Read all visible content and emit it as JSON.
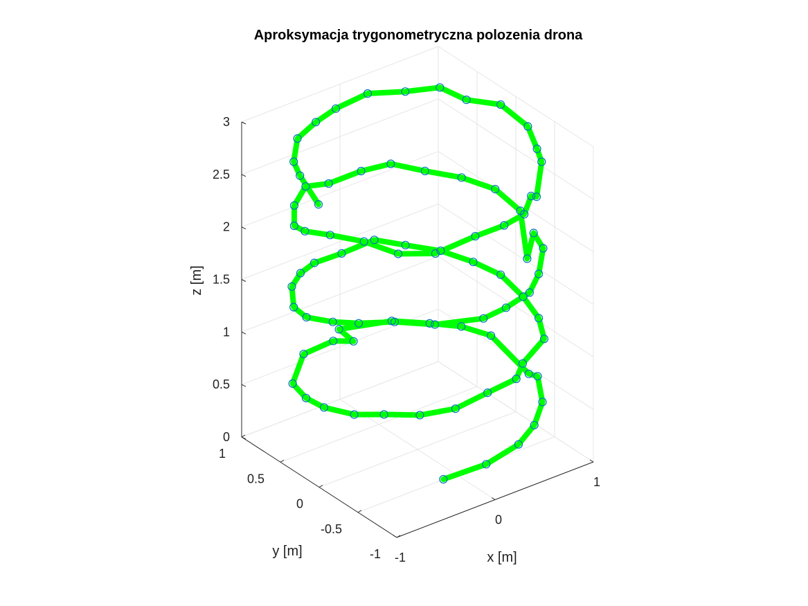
{
  "chart_data": {
    "type": "line",
    "projection": "3d",
    "title": "Aproksymacja trygonometryczna polozenia drona",
    "xlabel": "x [m]",
    "ylabel": "y [m]",
    "zlabel": "z [m]",
    "xlim": [
      -1,
      1
    ],
    "ylim": [
      -1,
      1
    ],
    "zlim": [
      0,
      3
    ],
    "xticks": [
      "-1",
      "0",
      "1"
    ],
    "yticks": [
      "-1",
      "-0.5",
      "0",
      "0.5",
      "1"
    ],
    "zticks": [
      "0",
      "0.5",
      "1",
      "1.5",
      "2",
      "2.5",
      "3"
    ],
    "grid": true,
    "series": [
      {
        "line_color": "#00ff00",
        "marker_color": "#0072bd",
        "marker": "circle",
        "points": [
          [
            -0.47,
            -0.93,
            0.33
          ],
          [
            -0.09,
            -1.0,
            0.37
          ],
          [
            0.27,
            -0.96,
            0.41
          ],
          [
            0.51,
            -0.86,
            0.46
          ],
          [
            0.79,
            -0.61,
            0.46
          ],
          [
            0.93,
            -0.37,
            0.54
          ],
          [
            0.99,
            -0.18,
            0.45
          ],
          [
            0.96,
            0.27,
            0.61
          ],
          [
            0.84,
            0.5,
            0.63
          ],
          [
            0.7,
            0.73,
            0.6
          ],
          [
            0.44,
            0.89,
            0.64
          ],
          [
            -0.01,
            1.0,
            0.67
          ],
          [
            0.13,
            0.99,
            0.51
          ],
          [
            -0.1,
            0.96,
            0.61
          ],
          [
            -0.48,
            0.86,
            0.67
          ],
          [
            -0.82,
            0.57,
            0.65
          ],
          [
            -0.96,
            0.22,
            0.73
          ],
          [
            -0.99,
            -0.05,
            0.78
          ],
          [
            -0.92,
            -0.35,
            0.83
          ],
          [
            -0.79,
            -0.57,
            0.89
          ],
          [
            -0.6,
            -0.79,
            0.92
          ],
          [
            -0.34,
            -0.92,
            0.95
          ],
          [
            -0.06,
            -0.98,
            1.03
          ],
          [
            0.24,
            -0.97,
            1.05
          ],
          [
            0.36,
            -0.9,
            1.12
          ],
          [
            0.76,
            -0.67,
            1.1
          ],
          [
            0.91,
            -0.41,
            1.12
          ],
          [
            0.98,
            -0.12,
            1.16
          ],
          [
            0.98,
            0.17,
            1.23
          ],
          [
            0.89,
            0.41,
            1.27
          ],
          [
            0.74,
            0.64,
            1.32
          ],
          [
            0.54,
            0.84,
            1.35
          ],
          [
            0.31,
            0.95,
            1.43
          ],
          [
            0.01,
            0.99,
            1.39
          ],
          [
            -0.3,
            0.95,
            1.43
          ],
          [
            -0.52,
            0.85,
            1.46
          ],
          [
            -0.75,
            0.67,
            1.5
          ],
          [
            -0.92,
            0.43,
            1.48
          ],
          [
            -0.98,
            0.19,
            1.52
          ],
          [
            -0.94,
            -0.1,
            1.6
          ],
          [
            -0.85,
            -0.32,
            1.66
          ],
          [
            -0.69,
            -0.58,
            1.74
          ],
          [
            -0.47,
            -0.82,
            1.75
          ],
          [
            -0.11,
            -0.99,
            1.76
          ],
          [
            0.12,
            -0.99,
            1.78
          ],
          [
            0.43,
            -0.9,
            1.77
          ],
          [
            0.61,
            -0.79,
            1.83
          ],
          [
            0.86,
            -0.53,
            1.86
          ],
          [
            0.96,
            -0.28,
            1.85
          ],
          [
            0.8,
            -0.4,
            1.72
          ],
          [
            0.96,
            -0.11,
            1.98
          ],
          [
            0.94,
            0.19,
            2.05
          ],
          [
            0.85,
            0.51,
            2.04
          ],
          [
            0.66,
            0.74,
            2.06
          ],
          [
            0.43,
            0.89,
            2.14
          ],
          [
            0.2,
            0.98,
            2.11
          ],
          [
            -0.13,
            0.98,
            2.11
          ],
          [
            -0.42,
            0.91,
            2.22
          ],
          [
            -0.67,
            0.74,
            2.21
          ],
          [
            -0.86,
            0.5,
            2.2
          ],
          [
            -0.98,
            0.21,
            2.33
          ],
          [
            -0.96,
            -0.09,
            2.43
          ],
          [
            -0.86,
            -0.4,
            2.48
          ],
          [
            -0.67,
            -0.6,
            2.39
          ],
          [
            -0.48,
            -0.84,
            2.44
          ],
          [
            -0.17,
            -0.96,
            2.55
          ],
          [
            0.1,
            -0.99,
            2.57
          ],
          [
            0.36,
            -0.92,
            2.55
          ],
          [
            0.47,
            -0.87,
            2.66
          ],
          [
            0.58,
            -0.8,
            2.58
          ],
          [
            0.75,
            -0.65,
            2.78
          ],
          [
            0.9,
            -0.4,
            2.73
          ],
          [
            0.98,
            -0.18,
            2.81
          ],
          [
            0.98,
            0.17,
            2.85
          ],
          [
            0.86,
            0.46,
            2.8
          ],
          [
            0.74,
            0.65,
            2.87
          ],
          [
            0.53,
            0.83,
            2.82
          ],
          [
            0.25,
            0.96,
            2.84
          ],
          [
            -0.05,
            0.99,
            2.79
          ],
          [
            -0.3,
            0.93,
            2.78
          ],
          [
            -0.59,
            0.8,
            2.79
          ],
          [
            -0.77,
            0.62,
            2.72
          ],
          [
            -0.92,
            0.35,
            2.77
          ],
          [
            -0.96,
            0.06,
            2.65
          ]
        ]
      }
    ]
  }
}
